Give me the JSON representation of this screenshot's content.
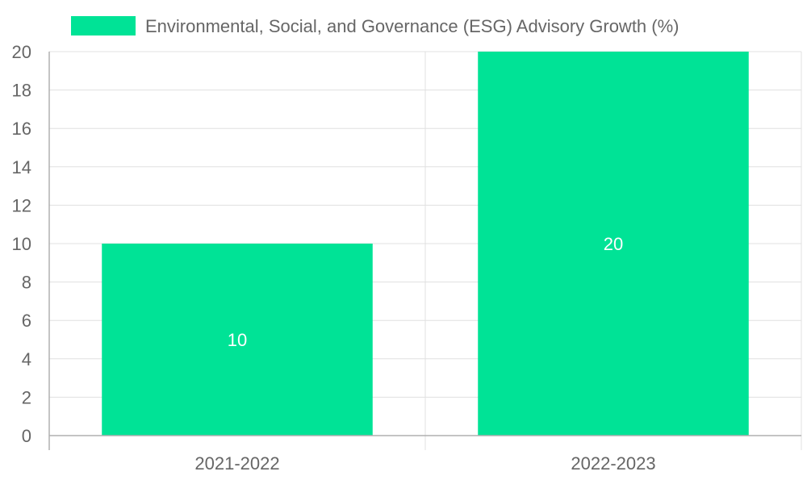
{
  "chart_data": {
    "type": "bar",
    "title": "",
    "xlabel": "",
    "ylabel": "",
    "categories": [
      "2021-2022",
      "2022-2023"
    ],
    "series": [
      {
        "name": "Environmental, Social, and Governance (ESG) Advisory Growth (%)",
        "values": [
          10,
          20
        ],
        "color": "#00e396"
      }
    ],
    "data_labels": [
      "10",
      "20"
    ],
    "ylim": [
      0,
      20
    ],
    "yticks": [
      0,
      2,
      4,
      6,
      8,
      10,
      12,
      14,
      16,
      18,
      20
    ],
    "grid": true,
    "legend_position": "top"
  }
}
